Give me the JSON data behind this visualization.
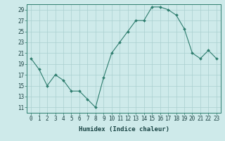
{
  "x": [
    0,
    1,
    2,
    3,
    4,
    5,
    6,
    7,
    8,
    9,
    10,
    11,
    12,
    13,
    14,
    15,
    16,
    17,
    18,
    19,
    20,
    21,
    22,
    23
  ],
  "y": [
    20,
    18,
    15,
    17,
    16,
    14,
    14,
    12.5,
    11,
    16.5,
    21,
    23,
    25,
    27,
    27,
    29.5,
    29.5,
    29,
    28,
    25.5,
    21,
    20,
    21.5,
    20
  ],
  "line_color": "#2e7d6e",
  "marker_color": "#2e7d6e",
  "bg_color": "#ceeaea",
  "grid_color": "#aacfcf",
  "xlabel": "Humidex (Indice chaleur)",
  "ylim": [
    10,
    30
  ],
  "xlim": [
    -0.5,
    23.5
  ],
  "yticks": [
    11,
    13,
    15,
    17,
    19,
    21,
    23,
    25,
    27,
    29
  ],
  "xticks": [
    0,
    1,
    2,
    3,
    4,
    5,
    6,
    7,
    8,
    9,
    10,
    11,
    12,
    13,
    14,
    15,
    16,
    17,
    18,
    19,
    20,
    21,
    22,
    23
  ],
  "xlabel_fontsize": 6.5,
  "tick_fontsize": 5.5
}
